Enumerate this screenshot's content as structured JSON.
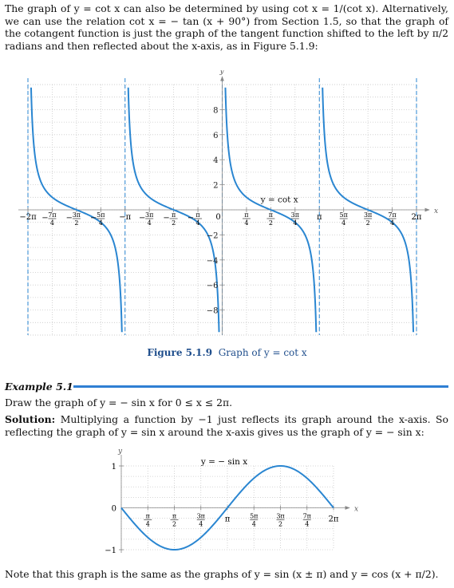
{
  "intro_paragraph": "The graph of y = cot x can also be determined by using cot x = 1/(cot x). Alternatively, we can use the relation cot x = − tan (x + 90°) from Section 1.5, so that the graph of the cotangent function is just the graph of the tangent function shifted to the left by π/2 radians and then reflected about the x-axis, as in Figure 5.1.9:",
  "figure": {
    "label": "Figure 5.1.9",
    "caption": "Graph of y = cot x"
  },
  "example": {
    "heading": "Example 5.1",
    "problem": "Draw the graph of y = − sin x for 0 ≤ x ≤ 2π.",
    "solution_label": "Solution:",
    "solution": "Multiplying a function by −1 just reflects its graph around the x-axis. So reflecting the graph of y = sin x around the x-axis gives us the graph of y = − sin x:"
  },
  "closing_note": "Note that this graph is the same as the graphs of y = sin (x ± π) and y = cos (x + π/2).",
  "chart_data": [
    {
      "type": "line",
      "title": "",
      "xlabel": "x",
      "ylabel": "y",
      "series": [
        {
          "name": "y = cot x",
          "function": "cot(x)",
          "color": "#2a86d1"
        }
      ],
      "xlim": [
        -6.2832,
        6.2832
      ],
      "ylim": [
        -10,
        10
      ],
      "x_tick_labels": [
        "−2π",
        "−7π/4",
        "−3π/2",
        "−5π/4",
        "−π",
        "−3π/4",
        "−π/2",
        "−π/4",
        "0",
        "π/4",
        "π/2",
        "3π/4",
        "π",
        "5π/4",
        "3π/2",
        "7π/4",
        "2π"
      ],
      "y_ticks": [
        -8,
        -6,
        -4,
        -2,
        2,
        4,
        6,
        8
      ],
      "asymptotes": [
        "−2π",
        "−π",
        "0",
        "π",
        "2π"
      ],
      "annotation": "y = cot x",
      "grid": true,
      "colors": {
        "curve": "#2a86d1",
        "asymptote": "#2a86d1",
        "grid": "#c9c9c9"
      }
    },
    {
      "type": "line",
      "title": "",
      "xlabel": "x",
      "ylabel": "y",
      "series": [
        {
          "name": "y = − sin x",
          "function": "-sin(x)",
          "color": "#2a86d1"
        }
      ],
      "xlim": [
        0,
        6.2832
      ],
      "ylim": [
        -1,
        1
      ],
      "x_tick_labels": [
        "π/4",
        "π/2",
        "3π/4",
        "π",
        "5π/4",
        "3π/2",
        "7π/4",
        "2π"
      ],
      "y_ticks": [
        -1,
        1
      ],
      "annotation": "y = − sin x",
      "grid": true,
      "colors": {
        "curve": "#2a86d1",
        "grid": "#c9c9c9"
      }
    }
  ]
}
